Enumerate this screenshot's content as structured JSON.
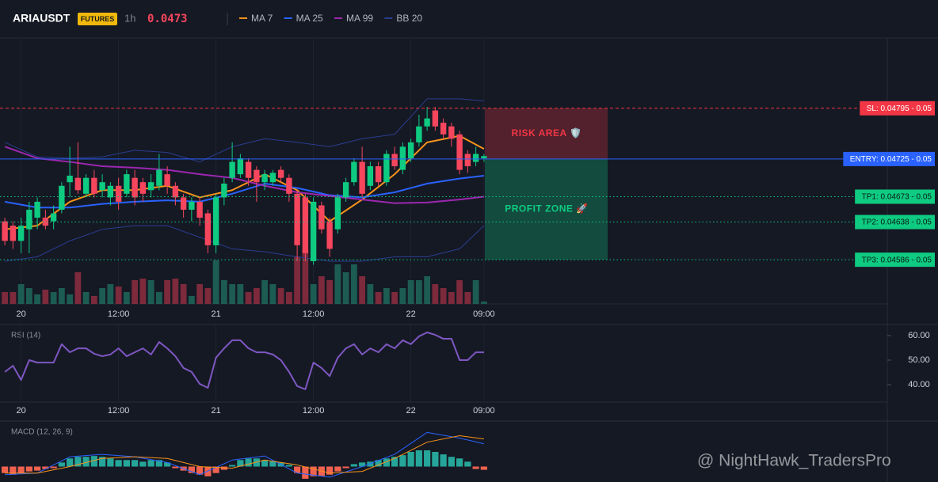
{
  "chart_data": [
    {
      "type": "candlestick",
      "title": "ARIAUSDT",
      "badge": "FUTURES",
      "interval": "1h",
      "last_price": 0.0473,
      "last_price_color": "#f6465d",
      "categories": [
        null,
        null,
        "20",
        null,
        null,
        null,
        null,
        null,
        null,
        null,
        null,
        null,
        null,
        null,
        "12:00",
        null,
        null,
        null,
        null,
        null,
        null,
        null,
        null,
        null,
        null,
        null,
        "21",
        null,
        null,
        null,
        null,
        null,
        null,
        null,
        null,
        null,
        null,
        null,
        "12:00",
        null,
        null,
        null,
        null,
        null,
        null,
        null,
        null,
        null,
        null,
        null,
        "22",
        null,
        null,
        null,
        null,
        null,
        null,
        null,
        null,
        "09:00"
      ],
      "open": [
        0.04639,
        0.04633,
        0.04612,
        0.04628,
        0.04644,
        0.04644,
        0.04639,
        0.04655,
        0.04693,
        0.04699,
        0.04677,
        0.04699,
        0.04682,
        0.04672,
        0.04688,
        0.04677,
        0.04699,
        0.04693,
        0.04682,
        0.04688,
        0.04704,
        0.04688,
        0.04672,
        0.04655,
        0.04666,
        0.0465,
        0.04606,
        0.04672,
        0.04699,
        0.04704,
        0.04721,
        0.0471,
        0.04693,
        0.04693,
        0.0471,
        0.04699,
        0.04677,
        0.04672,
        0.04584,
        0.04661,
        0.04639,
        0.04628,
        0.04672,
        0.04693,
        0.04721,
        0.04688,
        0.04715,
        0.04693,
        0.04732,
        0.0471,
        0.04726,
        0.04748,
        0.0477,
        0.04792,
        0.04775,
        0.0477,
        0.04759,
        0.04732,
        0.04721,
        0.04726
      ],
      "high": [
        0.04644,
        0.04639,
        0.04644,
        0.04666,
        0.04672,
        0.04655,
        0.04661,
        0.04693,
        0.04742,
        0.04748,
        0.04704,
        0.0471,
        0.04704,
        0.04693,
        0.04699,
        0.0471,
        0.0471,
        0.04699,
        0.04704,
        0.04732,
        0.04715,
        0.04693,
        0.04677,
        0.04672,
        0.04672,
        0.04655,
        0.04677,
        0.04699,
        0.04748,
        0.04732,
        0.04726,
        0.04715,
        0.0471,
        0.0471,
        0.04715,
        0.04704,
        0.04682,
        0.04677,
        0.04672,
        0.04666,
        0.04644,
        0.04677,
        0.04699,
        0.04726,
        0.04742,
        0.04721,
        0.04721,
        0.04737,
        0.04742,
        0.04748,
        0.04753,
        0.04786,
        0.04797,
        0.04797,
        0.04781,
        0.04775,
        0.04764,
        0.04737,
        0.04742,
        0.04732
      ],
      "low": [
        0.04606,
        0.04601,
        0.04595,
        0.04595,
        0.04628,
        0.04628,
        0.04628,
        0.0465,
        0.04672,
        0.04677,
        0.04672,
        0.04672,
        0.04672,
        0.04661,
        0.04655,
        0.04672,
        0.04661,
        0.04666,
        0.04672,
        0.04682,
        0.04677,
        0.04661,
        0.04644,
        0.04639,
        0.04633,
        0.04595,
        0.04595,
        0.04661,
        0.04693,
        0.04699,
        0.04688,
        0.04666,
        0.04682,
        0.04688,
        0.04693,
        0.04666,
        0.04584,
        0.04584,
        0.04579,
        0.04622,
        0.0459,
        0.04622,
        0.04666,
        0.04688,
        0.04672,
        0.04682,
        0.04688,
        0.04688,
        0.0471,
        0.04704,
        0.04721,
        0.04742,
        0.04764,
        0.04764,
        0.04753,
        0.04742,
        0.04704,
        0.04706,
        0.04715,
        0.04721
      ],
      "close": [
        0.04612,
        0.04612,
        0.04633,
        0.04655,
        0.04666,
        0.04633,
        0.0465,
        0.04688,
        0.04702,
        0.04682,
        0.04699,
        0.04677,
        0.04693,
        0.04688,
        0.04666,
        0.04704,
        0.04672,
        0.04677,
        0.04693,
        0.0471,
        0.04688,
        0.04672,
        0.04655,
        0.04666,
        0.04644,
        0.04606,
        0.04672,
        0.04691,
        0.04721,
        0.04726,
        0.04699,
        0.04693,
        0.04704,
        0.04706,
        0.04699,
        0.04677,
        0.04606,
        0.04595,
        0.04666,
        0.04628,
        0.04601,
        0.04672,
        0.04693,
        0.04721,
        0.04677,
        0.04715,
        0.04693,
        0.04732,
        0.04715,
        0.04742,
        0.04748,
        0.0477,
        0.04781,
        0.0477,
        0.04759,
        0.04753,
        0.0471,
        0.04715,
        0.04732,
        0.04729
      ],
      "up_color": "#0ecb81",
      "down_color": "#f6465d",
      "ylim": [
        0.04525,
        0.04892
      ],
      "series": [
        {
          "name": "MA 7",
          "color": "#f7931a",
          "x": [
            0,
            4,
            8,
            12,
            16,
            20,
            24,
            28,
            32,
            36,
            40,
            44,
            48,
            52,
            56,
            59
          ],
          "values": [
            0.04628,
            0.04633,
            0.04666,
            0.04682,
            0.04682,
            0.04688,
            0.04672,
            0.04682,
            0.04704,
            0.04682,
            0.04639,
            0.04669,
            0.04704,
            0.04748,
            0.04757,
            0.04739
          ]
        },
        {
          "name": "MA 25",
          "color": "#2962ff",
          "x": [
            0,
            4,
            8,
            12,
            16,
            20,
            24,
            28,
            32,
            36,
            40,
            44,
            48,
            52,
            56,
            59
          ],
          "values": [
            0.04666,
            0.04658,
            0.04658,
            0.04663,
            0.04666,
            0.04668,
            0.04666,
            0.04677,
            0.04691,
            0.04685,
            0.04675,
            0.04672,
            0.04679,
            0.04691,
            0.04698,
            0.04702
          ]
        },
        {
          "name": "MA 99",
          "color": "#9c27b0",
          "x": [
            0,
            4,
            8,
            12,
            16,
            20,
            24,
            28,
            32,
            36,
            40,
            44,
            48,
            52,
            56,
            59
          ],
          "values": [
            0.04742,
            0.04726,
            0.04721,
            0.04715,
            0.04713,
            0.0471,
            0.04704,
            0.04699,
            0.04688,
            0.04679,
            0.04674,
            0.04669,
            0.04664,
            0.04665,
            0.04669,
            0.04673
          ]
        },
        {
          "name": "BB 20",
          "color": "#2a3d8f",
          "x": [
            0,
            4,
            8,
            12,
            16,
            20,
            24,
            28,
            32,
            36,
            40,
            44,
            48,
            52,
            56,
            59
          ],
          "values": [
            0.04748,
            0.04728,
            0.04726,
            0.04728,
            0.04737,
            0.04734,
            0.04721,
            0.04742,
            0.04753,
            0.04748,
            0.04742,
            0.04753,
            0.04759,
            0.04808,
            0.04808,
            0.04805
          ],
          "lower": [
            0.04584,
            0.0459,
            0.04612,
            0.04628,
            0.04633,
            0.04633,
            0.04617,
            0.04601,
            0.04597,
            0.0459,
            0.04584,
            0.04584,
            0.0459,
            0.0459,
            0.04601,
            0.04633
          ]
        }
      ],
      "volume": [
        15,
        15,
        25,
        20,
        12,
        18,
        15,
        20,
        12,
        40,
        15,
        10,
        20,
        25,
        22,
        15,
        30,
        32,
        30,
        15,
        30,
        32,
        25,
        10,
        25,
        20,
        55,
        30,
        25,
        25,
        15,
        20,
        30,
        25,
        20,
        15,
        60,
        70,
        25,
        35,
        30,
        50,
        40,
        50,
        35,
        25,
        15,
        20,
        15,
        20,
        30,
        30,
        35,
        25,
        20,
        15,
        30,
        15,
        30,
        3
      ],
      "volume_ylim": [
        0,
        100
      ],
      "volume_up_color": "#1d5c52",
      "volume_down_color": "#7c2a3c",
      "levels": [
        {
          "label": "SL: 0.04795 - 0.05",
          "value": 0.04795,
          "color": "#f23645",
          "text_color": "#ffffff",
          "style": "dashed"
        },
        {
          "label": "ENTRY: 0.04725 - 0.05",
          "value": 0.04725,
          "color": "#2962ff",
          "text_color": "#ffffff",
          "style": "solid"
        },
        {
          "label": "TP1: 0.04673 - 0.05",
          "value": 0.04673,
          "color": "#0ecb81",
          "text_color": "#0b1a12",
          "style": "dotted"
        },
        {
          "label": "TP2: 0.04638 - 0.05",
          "value": 0.04638,
          "color": "#0ecb81",
          "text_color": "#0b1a12",
          "style": "dotted"
        },
        {
          "label": "TP3: 0.04586 - 0.05",
          "value": 0.04586,
          "color": "#0ecb81",
          "text_color": "#0b1a12",
          "style": "dotted"
        }
      ],
      "zones": [
        {
          "label": "RISK AREA 🛡️",
          "from": 0.04795,
          "to": 0.04725,
          "color": "#f23645"
        },
        {
          "label": "PROFIT ZONE 🚀",
          "from": 0.04725,
          "to": 0.04586,
          "color": "#0ecb81"
        }
      ]
    },
    {
      "type": "line",
      "title": "RSI (14)",
      "color": "#7e57c2",
      "categories": [
        null,
        null,
        "20",
        null,
        null,
        null,
        null,
        null,
        null,
        null,
        null,
        null,
        null,
        null,
        "12:00",
        null,
        null,
        null,
        null,
        null,
        null,
        null,
        null,
        null,
        null,
        null,
        "21",
        null,
        null,
        null,
        null,
        null,
        null,
        null,
        null,
        null,
        null,
        null,
        "12:00",
        null,
        null,
        null,
        null,
        null,
        null,
        null,
        null,
        null,
        null,
        null,
        "22",
        null,
        null,
        null,
        null,
        null,
        null,
        null,
        null,
        "09:00"
      ],
      "values": [
        45.2,
        47.7,
        41.9,
        50.0,
        49.0,
        49.0,
        49.0,
        56.5,
        53.2,
        54.8,
        54.8,
        52.6,
        51.6,
        52.3,
        54.8,
        51.6,
        53.2,
        54.8,
        52.3,
        57.4,
        54.8,
        51.6,
        46.8,
        45.2,
        40.3,
        38.7,
        51.0,
        54.8,
        58.1,
        58.1,
        54.8,
        53.2,
        53.2,
        52.3,
        50.0,
        45.2,
        39.4,
        38.1,
        49.0,
        46.8,
        43.5,
        51.0,
        54.8,
        56.5,
        52.3,
        54.8,
        53.2,
        56.5,
        54.8,
        58.1,
        56.5,
        59.7,
        61.3,
        60.3,
        58.7,
        58.7,
        50.0,
        50.0,
        53.2,
        53.2
      ],
      "ylim": [
        32.9,
        64.2
      ],
      "yticks": [
        {
          "value": 60,
          "label": "60.00"
        },
        {
          "value": 50,
          "label": "50.00"
        },
        {
          "value": 40,
          "label": "40.00"
        }
      ]
    },
    {
      "type": "macd",
      "title": "MACD (12, 26, 9)",
      "categories": [
        null,
        null,
        null,
        null,
        null,
        null,
        null,
        null,
        null,
        null,
        null,
        null,
        null,
        null,
        null,
        null,
        null,
        null,
        null,
        null,
        null,
        null,
        null,
        null,
        null,
        null,
        null,
        null,
        null,
        null,
        null,
        null,
        null,
        null,
        null,
        null,
        null,
        null,
        null,
        null,
        null,
        null,
        null,
        null,
        null,
        null,
        null,
        null,
        null,
        null,
        null,
        null,
        null,
        null,
        null,
        null,
        null,
        null,
        null,
        null
      ],
      "histogram": [
        -8,
        -10,
        -8,
        -6,
        -5,
        -3,
        -2,
        5,
        10,
        12,
        12,
        13,
        12,
        10,
        8,
        8,
        8,
        6,
        8,
        8,
        5,
        -2,
        -5,
        -8,
        -10,
        -12,
        -8,
        -4,
        2,
        8,
        10,
        10,
        8,
        7,
        5,
        2,
        -8,
        -15,
        -12,
        -12,
        -10,
        -6,
        -2,
        3,
        5,
        6,
        8,
        10,
        12,
        14,
        18,
        20,
        20,
        18,
        15,
        12,
        10,
        6,
        -3,
        -4
      ],
      "positive_color": "#26a69a",
      "negative_color": "#f0624f",
      "series": [
        {
          "color": "#2962ff",
          "x": [
            0,
            4,
            8,
            12,
            16,
            20,
            24,
            28,
            32,
            36,
            40,
            44,
            48,
            52,
            56,
            59
          ],
          "values": [
            -10,
            -8,
            12,
            15,
            12,
            5,
            -10,
            8,
            13,
            -8,
            -13,
            0,
            15,
            42,
            35,
            28
          ]
        },
        {
          "color": "#f7931a",
          "x": [
            0,
            4,
            8,
            12,
            16,
            20,
            24,
            28,
            32,
            36,
            40,
            44,
            48,
            52,
            56,
            59
          ],
          "values": [
            -8,
            -8,
            0,
            10,
            12,
            10,
            0,
            -2,
            8,
            2,
            -8,
            -6,
            10,
            30,
            38,
            34
          ]
        }
      ],
      "ylim": [
        -19,
        55
      ]
    }
  ],
  "watermark": "@ NightHawk_TradersPro"
}
